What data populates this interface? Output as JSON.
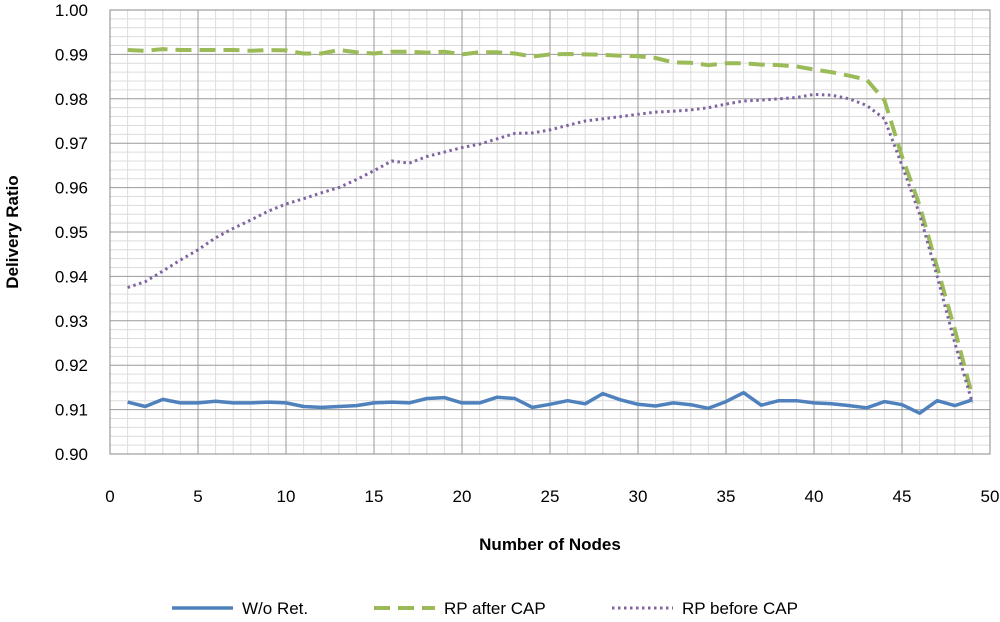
{
  "chart_data": {
    "type": "line",
    "title": "",
    "xlabel": "Number of Nodes",
    "ylabel": "Delivery Ratio",
    "xlim": [
      0,
      50
    ],
    "ylim": [
      0.9,
      1.0
    ],
    "x_ticks": [
      "0",
      "5",
      "10",
      "15",
      "20",
      "25",
      "30",
      "35",
      "40",
      "45",
      "50"
    ],
    "y_ticks": [
      "0.90",
      "0.91",
      "0.92",
      "0.93",
      "0.94",
      "0.95",
      "0.96",
      "0.97",
      "0.98",
      "0.99",
      "1.00"
    ],
    "grid": true,
    "legend_position": "bottom",
    "x": [
      1,
      2,
      3,
      4,
      5,
      6,
      7,
      8,
      9,
      10,
      11,
      12,
      13,
      14,
      15,
      16,
      17,
      18,
      19,
      20,
      21,
      22,
      23,
      24,
      25,
      26,
      27,
      28,
      29,
      30,
      31,
      32,
      33,
      34,
      35,
      36,
      37,
      38,
      39,
      40,
      41,
      42,
      43,
      44,
      45,
      46,
      47,
      48,
      49
    ],
    "series": [
      {
        "name": "W/o Ret.",
        "color": "#4F81BD",
        "style": "solid",
        "values": [
          0.9117,
          0.9107,
          0.9123,
          0.9115,
          0.9115,
          0.9119,
          0.9115,
          0.9115,
          0.9117,
          0.9115,
          0.9107,
          0.9105,
          0.9107,
          0.9109,
          0.9115,
          0.9117,
          0.9115,
          0.9125,
          0.9127,
          0.9115,
          0.9115,
          0.9128,
          0.9125,
          0.9105,
          0.9112,
          0.912,
          0.9113,
          0.9136,
          0.9122,
          0.9112,
          0.9108,
          0.9115,
          0.9111,
          0.9103,
          0.9118,
          0.9138,
          0.911,
          0.912,
          0.912,
          0.9115,
          0.9113,
          0.9109,
          0.9104,
          0.9118,
          0.9111,
          0.9092,
          0.912,
          0.9109,
          0.9122
        ]
      },
      {
        "name": "RP after CAP",
        "color": "#9BBB59",
        "style": "dashed",
        "values": [
          0.991,
          0.9908,
          0.9912,
          0.991,
          0.991,
          0.991,
          0.991,
          0.9908,
          0.991,
          0.9909,
          0.9902,
          0.9902,
          0.991,
          0.9905,
          0.9902,
          0.9906,
          0.9906,
          0.9904,
          0.9906,
          0.99,
          0.9905,
          0.9905,
          0.9902,
          0.9895,
          0.99,
          0.9901,
          0.99,
          0.9899,
          0.9897,
          0.9896,
          0.9892,
          0.9882,
          0.9881,
          0.9876,
          0.988,
          0.988,
          0.9877,
          0.9876,
          0.9873,
          0.9866,
          0.986,
          0.9852,
          0.9843,
          0.9797,
          0.967,
          0.956,
          0.942,
          0.928,
          0.913
        ]
      },
      {
        "name": "RP before CAP",
        "color": "#8064A2",
        "style": "dotted",
        "values": [
          0.9375,
          0.9388,
          0.9412,
          0.9437,
          0.946,
          0.9487,
          0.9508,
          0.9527,
          0.9547,
          0.9563,
          0.9575,
          0.9588,
          0.96,
          0.9618,
          0.9638,
          0.966,
          0.9655,
          0.967,
          0.968,
          0.969,
          0.9698,
          0.971,
          0.9722,
          0.9723,
          0.973,
          0.974,
          0.975,
          0.9755,
          0.976,
          0.9765,
          0.977,
          0.9772,
          0.9775,
          0.978,
          0.9788,
          0.9795,
          0.9797,
          0.98,
          0.9803,
          0.981,
          0.9808,
          0.98,
          0.9785,
          0.9755,
          0.965,
          0.954,
          0.94,
          0.925,
          0.9115
        ]
      }
    ]
  }
}
